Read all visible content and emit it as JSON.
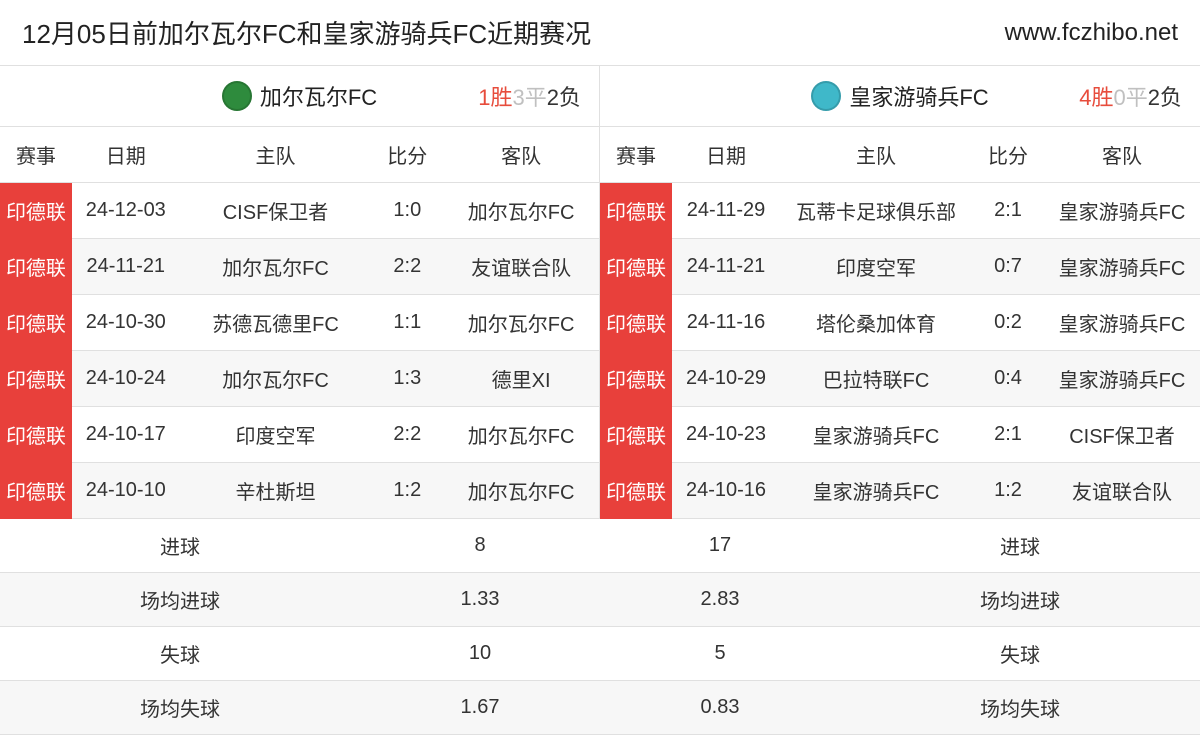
{
  "header": {
    "title": "12月05日前加尔瓦尔FC和皇家游骑兵FC近期赛况",
    "url": "www.fczhibo.net"
  },
  "columns": {
    "event": "赛事",
    "date": "日期",
    "home": "主队",
    "score": "比分",
    "away": "客队"
  },
  "record_labels": {
    "win": "胜",
    "draw": "平",
    "lose": "负"
  },
  "event_badge": {
    "label": "印德联",
    "bg": "#e8403b",
    "fg": "#ffffff"
  },
  "left": {
    "team_name": "加尔瓦尔FC",
    "logo_bg": "#2e8b3d",
    "record": {
      "win": 1,
      "draw": 3,
      "lose": 2
    },
    "rows": [
      {
        "date": "24-12-03",
        "home": "CISF保卫者",
        "score": "1:0",
        "away": "加尔瓦尔FC"
      },
      {
        "date": "24-11-21",
        "home": "加尔瓦尔FC",
        "score": "2:2",
        "away": "友谊联合队"
      },
      {
        "date": "24-10-30",
        "home": "苏德瓦德里FC",
        "score": "1:1",
        "away": "加尔瓦尔FC"
      },
      {
        "date": "24-10-24",
        "home": "加尔瓦尔FC",
        "score": "1:3",
        "away": "德里XI"
      },
      {
        "date": "24-10-17",
        "home": "印度空军",
        "score": "2:2",
        "away": "加尔瓦尔FC"
      },
      {
        "date": "24-10-10",
        "home": "辛杜斯坦",
        "score": "1:2",
        "away": "加尔瓦尔FC"
      }
    ]
  },
  "right": {
    "team_name": "皇家游骑兵FC",
    "logo_bg": "#3fb8c9",
    "record": {
      "win": 4,
      "draw": 0,
      "lose": 2
    },
    "rows": [
      {
        "date": "24-11-29",
        "home": "瓦蒂卡足球俱乐部",
        "score": "2:1",
        "away": "皇家游骑兵FC"
      },
      {
        "date": "24-11-21",
        "home": "印度空军",
        "score": "0:7",
        "away": "皇家游骑兵FC"
      },
      {
        "date": "24-11-16",
        "home": "塔伦桑加体育",
        "score": "0:2",
        "away": "皇家游骑兵FC"
      },
      {
        "date": "24-10-29",
        "home": "巴拉特联FC",
        "score": "0:4",
        "away": "皇家游骑兵FC"
      },
      {
        "date": "24-10-23",
        "home": "皇家游骑兵FC",
        "score": "2:1",
        "away": "CISF保卫者"
      },
      {
        "date": "24-10-16",
        "home": "皇家游骑兵FC",
        "score": "1:2",
        "away": "友谊联合队"
      }
    ]
  },
  "stats": {
    "labels": {
      "goals": "进球",
      "avg_goals": "场均进球",
      "conceded": "失球",
      "avg_conceded": "场均失球"
    },
    "left": {
      "goals": "8",
      "avg_goals": "1.33",
      "conceded": "10",
      "avg_conceded": "1.67"
    },
    "right": {
      "goals": "17",
      "avg_goals": "2.83",
      "conceded": "5",
      "avg_conceded": "0.83"
    }
  },
  "colors": {
    "win": "#e74c3c",
    "draw": "#c0c0c0",
    "lose": "#333333",
    "alt_row": "#f7f7f7",
    "border": "#e0e0e0"
  }
}
